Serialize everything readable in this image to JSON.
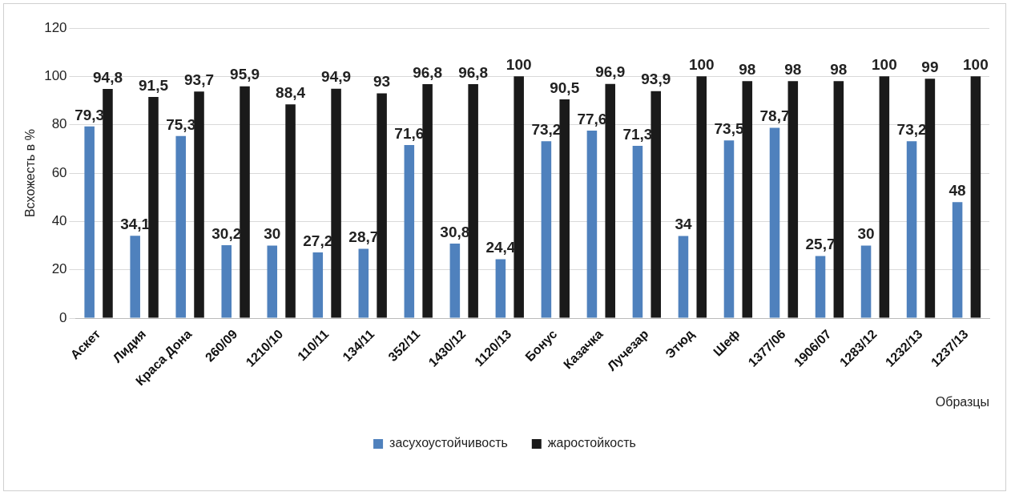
{
  "chart_data": {
    "type": "bar",
    "ylabel": "Всхожесть в %",
    "xlabel": "Образцы",
    "categories": [
      "Аскет",
      "Лидия",
      "Краса Дона",
      "260/09",
      "1210/10",
      "110/11",
      "134/11",
      "352/11",
      "1430/12",
      "1120/13",
      "Бонус",
      "Казачка",
      "Лучезар",
      "Этюд",
      "Шеф",
      "1377/06",
      "1906/07",
      "1283/12",
      "1232/13",
      "1237/13"
    ],
    "series": [
      {
        "name": "засухоустойчивость",
        "color": "#4f81bd",
        "values": [
          79.3,
          34.1,
          75.3,
          30.2,
          30,
          27.2,
          28.7,
          71.6,
          30.8,
          24.4,
          73.2,
          77.6,
          71.3,
          34,
          73.5,
          78.7,
          25.7,
          30,
          73.2,
          48
        ],
        "value_labels": [
          "79,3",
          "34,1",
          "75,3",
          "30,2",
          "30",
          "27,2",
          "28,7",
          "71,6",
          "30,8",
          "24,4",
          "73,2",
          "77,6",
          "71,3",
          "34",
          "73,5",
          "78,7",
          "25,7",
          "30",
          "73,2",
          "48"
        ]
      },
      {
        "name": "жаростойкость",
        "color": "#1a1a1a",
        "values": [
          94.8,
          91.5,
          93.7,
          95.9,
          88.4,
          94.9,
          93,
          96.8,
          96.8,
          100,
          90.5,
          96.9,
          93.9,
          100,
          98,
          98,
          98,
          100,
          99,
          100
        ],
        "value_labels": [
          "94,8",
          "91,5",
          "93,7",
          "95,9",
          "88,4",
          "94,9",
          "93",
          "96,8",
          "96,8",
          "100",
          "90,5",
          "96,9",
          "93,9",
          "100",
          "98",
          "98",
          "98",
          "100",
          "99",
          "100"
        ]
      }
    ],
    "ylim": [
      0,
      120
    ],
    "yticks": [
      0,
      20,
      40,
      60,
      80,
      100,
      120
    ],
    "grid": "y",
    "legend": "bottom"
  }
}
